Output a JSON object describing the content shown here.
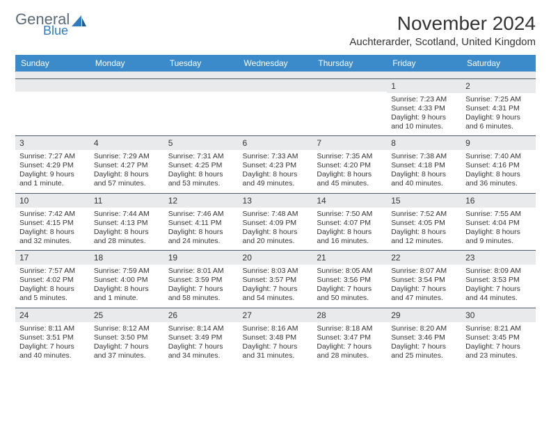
{
  "logo": {
    "text1": "General",
    "text2": "Blue",
    "color1": "#5a6a78",
    "color2": "#2f7dc0"
  },
  "title": "November 2024",
  "location": "Auchterarder, Scotland, United Kingdom",
  "header_bg": "#3b8bca",
  "daynum_bg": "#e9eaeb",
  "daynames": [
    "Sunday",
    "Monday",
    "Tuesday",
    "Wednesday",
    "Thursday",
    "Friday",
    "Saturday"
  ],
  "labels": {
    "sunrise": "Sunrise:",
    "sunset": "Sunset:",
    "daylight": "Daylight:"
  },
  "weeks": [
    [
      {
        "n": "",
        "sr": "",
        "ss": "",
        "dl": ""
      },
      {
        "n": "",
        "sr": "",
        "ss": "",
        "dl": ""
      },
      {
        "n": "",
        "sr": "",
        "ss": "",
        "dl": ""
      },
      {
        "n": "",
        "sr": "",
        "ss": "",
        "dl": ""
      },
      {
        "n": "",
        "sr": "",
        "ss": "",
        "dl": ""
      },
      {
        "n": "1",
        "sr": "7:23 AM",
        "ss": "4:33 PM",
        "dl": "9 hours and 10 minutes."
      },
      {
        "n": "2",
        "sr": "7:25 AM",
        "ss": "4:31 PM",
        "dl": "9 hours and 6 minutes."
      }
    ],
    [
      {
        "n": "3",
        "sr": "7:27 AM",
        "ss": "4:29 PM",
        "dl": "9 hours and 1 minute."
      },
      {
        "n": "4",
        "sr": "7:29 AM",
        "ss": "4:27 PM",
        "dl": "8 hours and 57 minutes."
      },
      {
        "n": "5",
        "sr": "7:31 AM",
        "ss": "4:25 PM",
        "dl": "8 hours and 53 minutes."
      },
      {
        "n": "6",
        "sr": "7:33 AM",
        "ss": "4:23 PM",
        "dl": "8 hours and 49 minutes."
      },
      {
        "n": "7",
        "sr": "7:35 AM",
        "ss": "4:20 PM",
        "dl": "8 hours and 45 minutes."
      },
      {
        "n": "8",
        "sr": "7:38 AM",
        "ss": "4:18 PM",
        "dl": "8 hours and 40 minutes."
      },
      {
        "n": "9",
        "sr": "7:40 AM",
        "ss": "4:16 PM",
        "dl": "8 hours and 36 minutes."
      }
    ],
    [
      {
        "n": "10",
        "sr": "7:42 AM",
        "ss": "4:15 PM",
        "dl": "8 hours and 32 minutes."
      },
      {
        "n": "11",
        "sr": "7:44 AM",
        "ss": "4:13 PM",
        "dl": "8 hours and 28 minutes."
      },
      {
        "n": "12",
        "sr": "7:46 AM",
        "ss": "4:11 PM",
        "dl": "8 hours and 24 minutes."
      },
      {
        "n": "13",
        "sr": "7:48 AM",
        "ss": "4:09 PM",
        "dl": "8 hours and 20 minutes."
      },
      {
        "n": "14",
        "sr": "7:50 AM",
        "ss": "4:07 PM",
        "dl": "8 hours and 16 minutes."
      },
      {
        "n": "15",
        "sr": "7:52 AM",
        "ss": "4:05 PM",
        "dl": "8 hours and 12 minutes."
      },
      {
        "n": "16",
        "sr": "7:55 AM",
        "ss": "4:04 PM",
        "dl": "8 hours and 9 minutes."
      }
    ],
    [
      {
        "n": "17",
        "sr": "7:57 AM",
        "ss": "4:02 PM",
        "dl": "8 hours and 5 minutes."
      },
      {
        "n": "18",
        "sr": "7:59 AM",
        "ss": "4:00 PM",
        "dl": "8 hours and 1 minute."
      },
      {
        "n": "19",
        "sr": "8:01 AM",
        "ss": "3:59 PM",
        "dl": "7 hours and 58 minutes."
      },
      {
        "n": "20",
        "sr": "8:03 AM",
        "ss": "3:57 PM",
        "dl": "7 hours and 54 minutes."
      },
      {
        "n": "21",
        "sr": "8:05 AM",
        "ss": "3:56 PM",
        "dl": "7 hours and 50 minutes."
      },
      {
        "n": "22",
        "sr": "8:07 AM",
        "ss": "3:54 PM",
        "dl": "7 hours and 47 minutes."
      },
      {
        "n": "23",
        "sr": "8:09 AM",
        "ss": "3:53 PM",
        "dl": "7 hours and 44 minutes."
      }
    ],
    [
      {
        "n": "24",
        "sr": "8:11 AM",
        "ss": "3:51 PM",
        "dl": "7 hours and 40 minutes."
      },
      {
        "n": "25",
        "sr": "8:12 AM",
        "ss": "3:50 PM",
        "dl": "7 hours and 37 minutes."
      },
      {
        "n": "26",
        "sr": "8:14 AM",
        "ss": "3:49 PM",
        "dl": "7 hours and 34 minutes."
      },
      {
        "n": "27",
        "sr": "8:16 AM",
        "ss": "3:48 PM",
        "dl": "7 hours and 31 minutes."
      },
      {
        "n": "28",
        "sr": "8:18 AM",
        "ss": "3:47 PM",
        "dl": "7 hours and 28 minutes."
      },
      {
        "n": "29",
        "sr": "8:20 AM",
        "ss": "3:46 PM",
        "dl": "7 hours and 25 minutes."
      },
      {
        "n": "30",
        "sr": "8:21 AM",
        "ss": "3:45 PM",
        "dl": "7 hours and 23 minutes."
      }
    ]
  ]
}
